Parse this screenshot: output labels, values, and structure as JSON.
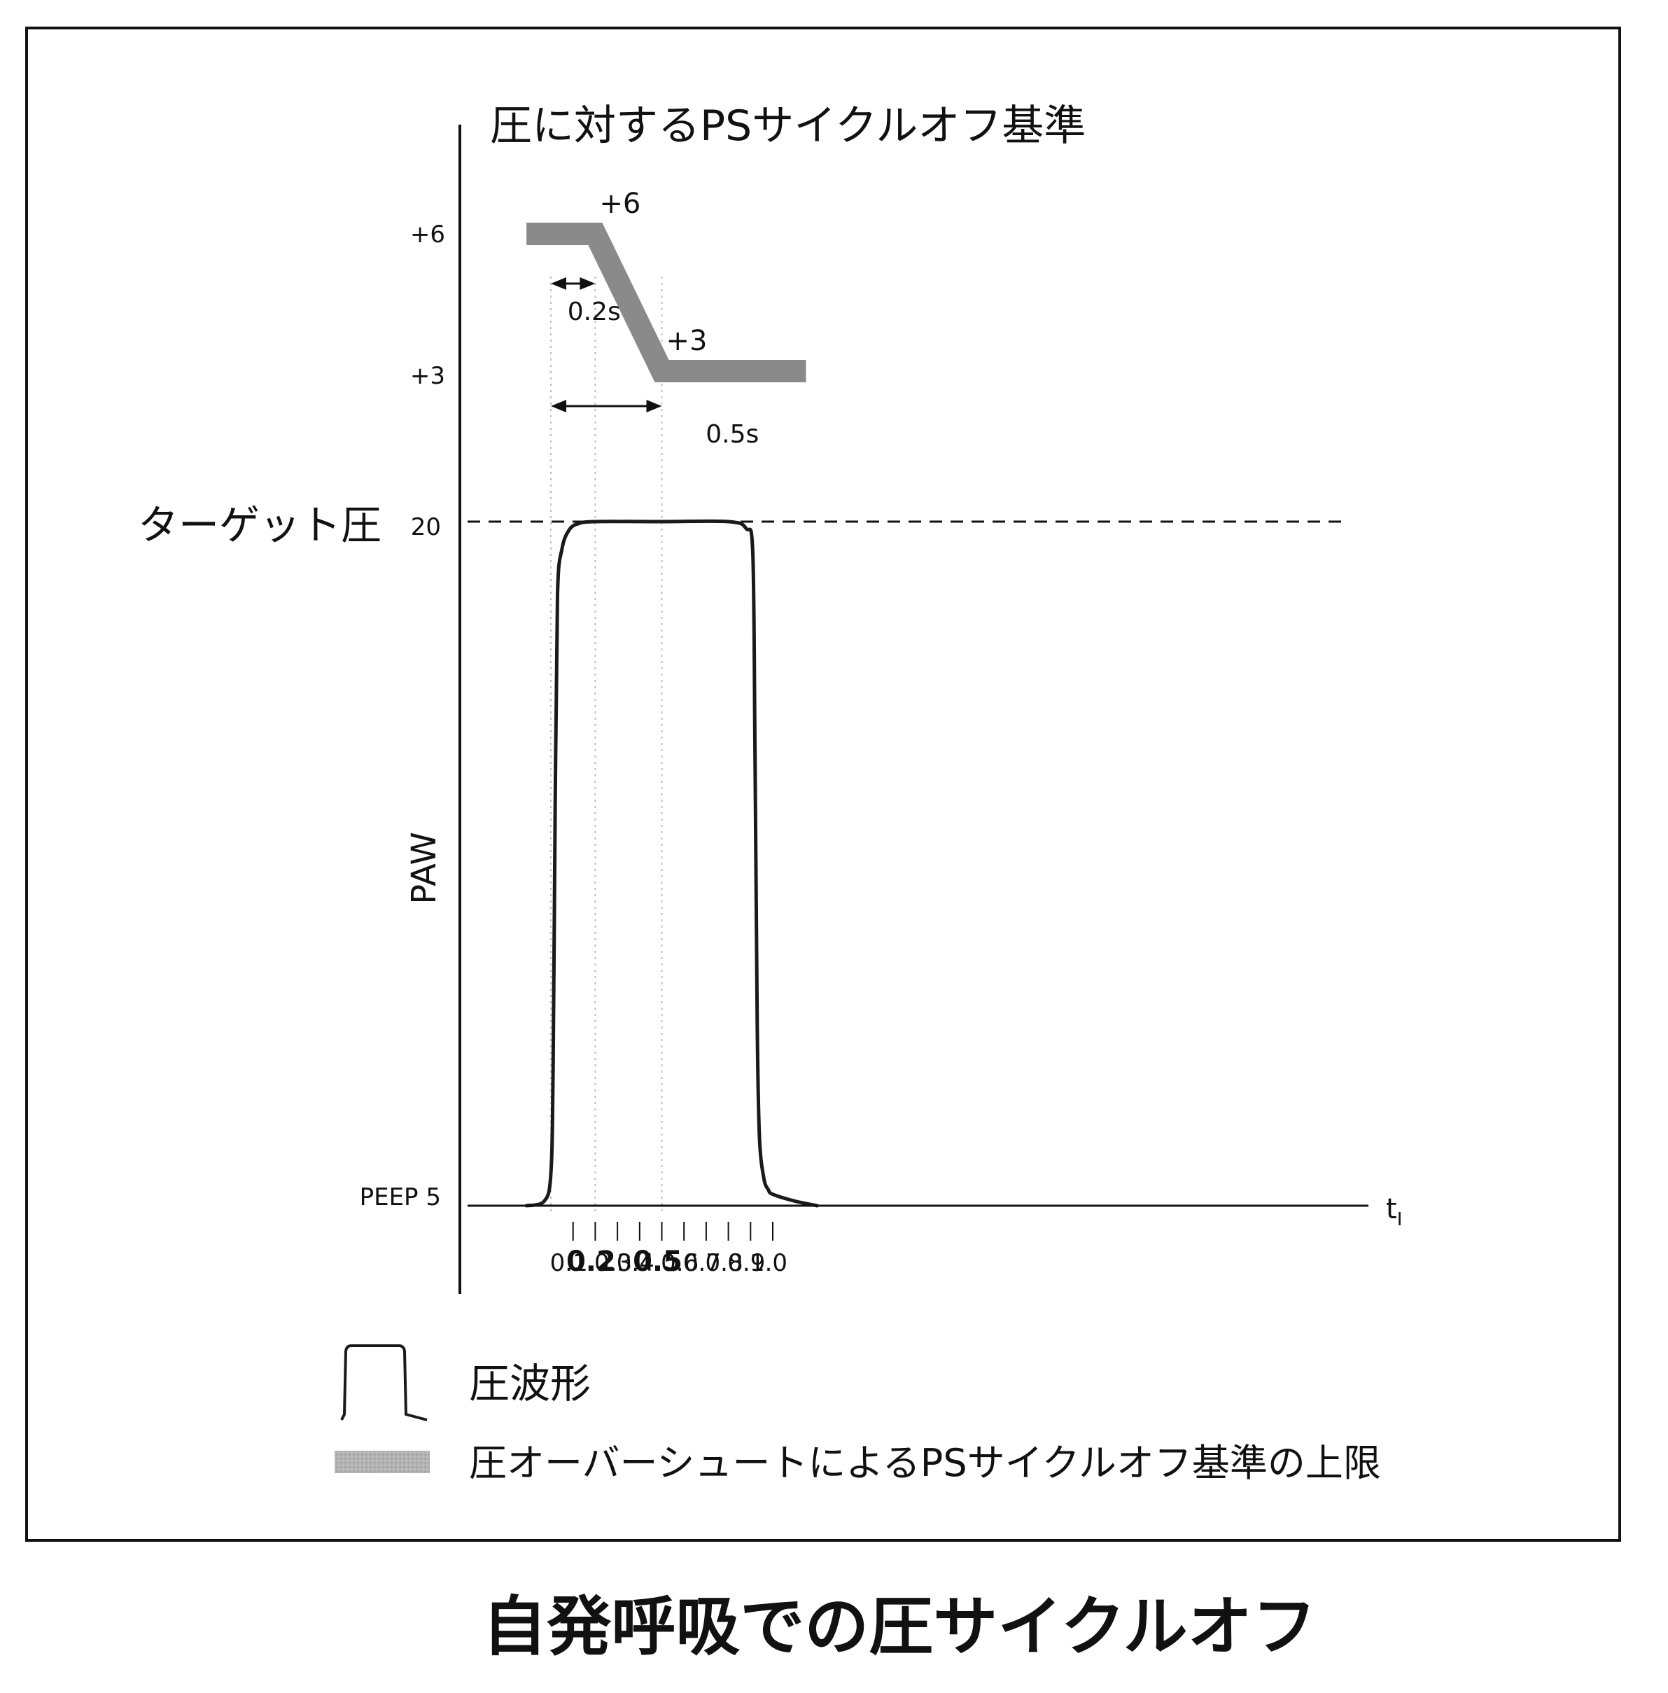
{
  "caption": "自発呼吸での圧サイクルオフ",
  "chart_data": {
    "type": "line",
    "title": "圧に対するPSサイクルオフ基準",
    "ylabel": "PAW",
    "xlabel": "tI",
    "x_ticks": [
      "0.1",
      "0.2",
      "0.3",
      "0.4",
      "0.5",
      "0.6",
      "0.7",
      "0.8",
      "0.9",
      "1.0"
    ],
    "x_ticks_bold": [
      "0.2",
      "0.5"
    ],
    "pressure": {
      "y_ticks": [
        "PEEP 5",
        "20"
      ],
      "peep": 5,
      "target": 20,
      "target_label": "ターゲット圧",
      "series": [
        {
          "name": "圧波形",
          "x": [
            -0.11,
            -0.03,
            0.0,
            0.01,
            0.02,
            0.03,
            0.05,
            0.08,
            0.12,
            0.2,
            0.5,
            0.8,
            0.88,
            0.91,
            0.92,
            0.93,
            0.94,
            0.96,
            0.98,
            1.0,
            1.1,
            1.2
          ],
          "y": [
            5.0,
            5.1,
            5.7,
            8.0,
            14.0,
            18.4,
            19.4,
            19.8,
            19.95,
            20.0,
            20.0,
            20.0,
            19.85,
            19.3,
            15.0,
            9.0,
            6.5,
            5.6,
            5.35,
            5.25,
            5.1,
            5.0
          ]
        }
      ]
    },
    "cycle_off": {
      "y_ticks": [
        "+6",
        "+3"
      ],
      "series": [
        {
          "name": "圧オーバーシュートによるPSサイクルオフ基準の上限",
          "x": [
            -0.11,
            0.2,
            0.5,
            1.15
          ],
          "y": [
            6,
            6,
            3,
            3
          ],
          "color": "#8a8a8a"
        }
      ],
      "annotations": [
        {
          "text": "+6",
          "x": 0.2,
          "y": 6
        },
        {
          "text": "+3",
          "x": 0.5,
          "y": 3
        }
      ],
      "spans": [
        {
          "label": "0.2s",
          "from": 0.0,
          "to": 0.2
        },
        {
          "label": "0.5s",
          "from": 0.0,
          "to": 0.5
        }
      ]
    },
    "legend": [
      {
        "label": "圧波形",
        "kind": "line"
      },
      {
        "label": "圧オーバーシュートによるPSサイクルオフ基準の上限",
        "kind": "band"
      }
    ],
    "legend_position": "bottom"
  }
}
